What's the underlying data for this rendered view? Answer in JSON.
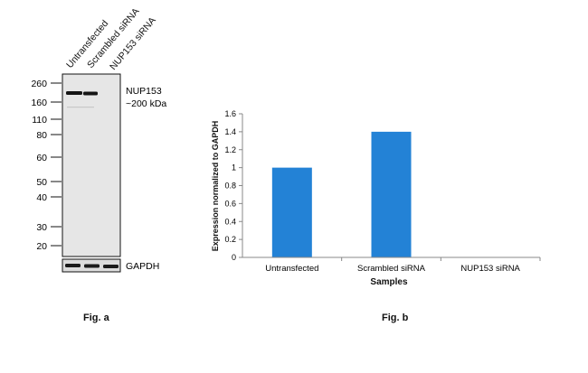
{
  "fig_a": {
    "caption": "Fig. a",
    "lanes": [
      "Untransfected",
      "Scrambled siRNA",
      "NUP153 siRNA"
    ],
    "mw_markers": [
      "260",
      "160",
      "110",
      "80",
      "60",
      "50",
      "40",
      "30",
      "20"
    ],
    "band_label_line1": "NUP153",
    "band_label_line2": "~200 kDa",
    "loading_control_label": "GAPDH"
  },
  "fig_b": {
    "caption": "Fig. b"
  },
  "chart_data": {
    "type": "bar",
    "categories": [
      "Untransfected",
      "Scrambled siRNA",
      "NUP153 siRNA"
    ],
    "values": [
      1.0,
      1.4,
      0.0
    ],
    "xlabel": "Samples",
    "ylabel": "Expression normalized to GAPDH",
    "ylim": [
      0,
      1.6
    ],
    "yticks": [
      "0",
      "0.2",
      "0.4",
      "0.6",
      "0.8",
      "1",
      "1.2",
      "1.4",
      "1.6"
    ],
    "bar_color": "#2382d6",
    "grid": false,
    "legend": "none"
  }
}
